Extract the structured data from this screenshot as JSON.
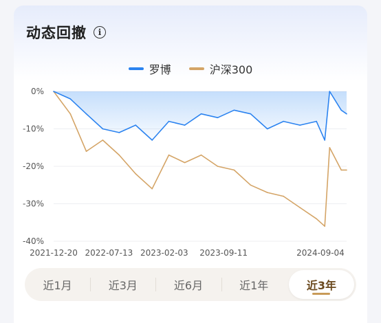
{
  "header": {
    "title": "动态回撤",
    "info_icon": "info-icon",
    "info_glyph": "i"
  },
  "legend": [
    {
      "name": "罗博",
      "color": "#2b83f0"
    },
    {
      "name": "沪深300",
      "color": "#d4a466"
    }
  ],
  "period_tabs": [
    {
      "label": "近1月",
      "active": false
    },
    {
      "label": "近3月",
      "active": false
    },
    {
      "label": "近6月",
      "active": false
    },
    {
      "label": "近1年",
      "active": false
    },
    {
      "label": "近3年",
      "active": true
    }
  ],
  "chart_data": {
    "type": "area",
    "x_labels": [
      "2021-12-20",
      "2022-07-13",
      "2023-02-03",
      "2023-09-11",
      "2024-09-04"
    ],
    "y_ticks": [
      "0%",
      "-10%",
      "-20%",
      "-30%",
      "-40%"
    ],
    "ylim": [
      -40,
      0
    ],
    "grid": true,
    "legend_position": "top-center",
    "series": [
      {
        "name": "罗博",
        "color": "#2b83f0",
        "fill": true,
        "x": [
          "2021-12-20",
          "2022-02-20",
          "2022-04-20",
          "2022-06-20",
          "2022-08-20",
          "2022-10-20",
          "2022-12-20",
          "2023-02-20",
          "2023-04-20",
          "2023-06-20",
          "2023-08-20",
          "2023-10-20",
          "2023-12-20",
          "2024-02-20",
          "2024-04-20",
          "2024-06-20",
          "2024-08-20",
          "2024-09-20",
          "2024-10-08",
          "2024-11-20",
          "2024-12-10"
        ],
        "values": [
          0,
          -2,
          -6,
          -10,
          -11,
          -9,
          -13,
          -8,
          -9,
          -6,
          -7,
          -5,
          -6,
          -10,
          -8,
          -9,
          -8,
          -13,
          0,
          -5,
          -6
        ]
      },
      {
        "name": "沪深300",
        "color": "#d4a466",
        "fill": false,
        "x": [
          "2021-12-20",
          "2022-02-20",
          "2022-04-20",
          "2022-06-20",
          "2022-08-20",
          "2022-10-20",
          "2022-12-20",
          "2023-02-20",
          "2023-04-20",
          "2023-06-20",
          "2023-08-20",
          "2023-10-20",
          "2023-12-20",
          "2024-02-20",
          "2024-04-20",
          "2024-06-20",
          "2024-08-20",
          "2024-09-20",
          "2024-10-08",
          "2024-11-20",
          "2024-12-10"
        ],
        "values": [
          0,
          -6,
          -16,
          -13,
          -17,
          -22,
          -26,
          -17,
          -19,
          -17,
          -20,
          -21,
          -25,
          -27,
          -28,
          -31,
          -34,
          -36,
          -15,
          -21,
          -21
        ]
      }
    ]
  }
}
